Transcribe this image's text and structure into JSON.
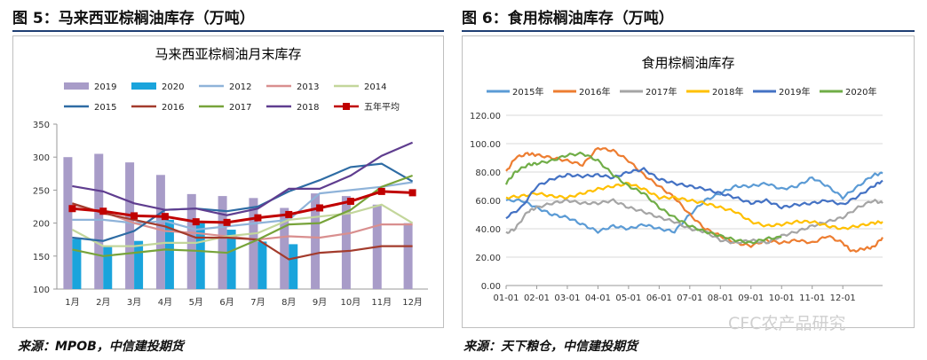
{
  "header": {
    "left_title": "图 5：马来西亚棕榈油库存（万吨）",
    "right_title": "图 6：食用棕榈油库存（万吨）"
  },
  "footer": {
    "left_source": "来源：MPOB，中信建投期货",
    "right_source": "来源：天下粮仓，中信建投期货",
    "watermark": "CFC农产品研究"
  },
  "chart_data": [
    {
      "type": "bar",
      "title": "马来西亚棕榈油月末库存",
      "categories": [
        "1月",
        "2月",
        "3月",
        "4月",
        "5月",
        "6月",
        "7月",
        "8月",
        "9月",
        "10月",
        "11月",
        "12月"
      ],
      "ylim": [
        100,
        350
      ],
      "yticks": [
        100,
        150,
        200,
        250,
        300,
        350
      ],
      "grid": false,
      "legend_position": "top",
      "series": [
        {
          "name": "2019",
          "kind": "bar",
          "color": "#a89cc8",
          "values": [
            300,
            305,
            292,
            273,
            244,
            241,
            238,
            223,
            245,
            241,
            228,
            200
          ]
        },
        {
          "name": "2020",
          "kind": "bar",
          "color": "#1aa4dc",
          "values": [
            176,
            165,
            173,
            205,
            200,
            190,
            172,
            168,
            null,
            null,
            null,
            null
          ]
        },
        {
          "name": "2012",
          "kind": "line",
          "color": "#8fb3d9",
          "values": [
            205,
            205,
            200,
            203,
            190,
            195,
            200,
            205,
            245,
            250,
            255,
            262
          ]
        },
        {
          "name": "2013",
          "kind": "line",
          "color": "#d98f8f",
          "values": [
            228,
            217,
            200,
            188,
            185,
            180,
            175,
            180,
            178,
            185,
            198,
            198
          ]
        },
        {
          "name": "2014",
          "kind": "line",
          "color": "#c3d69b",
          "values": [
            190,
            165,
            165,
            170,
            170,
            180,
            185,
            205,
            210,
            215,
            228,
            200
          ]
        },
        {
          "name": "2015",
          "kind": "line",
          "color": "#2e6ca4",
          "values": [
            178,
            173,
            188,
            220,
            222,
            218,
            225,
            248,
            265,
            285,
            290,
            263
          ]
        },
        {
          "name": "2016",
          "kind": "line",
          "color": "#a33b2c",
          "values": [
            230,
            215,
            205,
            195,
            178,
            178,
            175,
            145,
            155,
            158,
            165,
            165
          ]
        },
        {
          "name": "2017",
          "kind": "line",
          "color": "#77a33a",
          "values": [
            160,
            150,
            155,
            160,
            158,
            155,
            175,
            198,
            200,
            220,
            255,
            272
          ]
        },
        {
          "name": "2018",
          "kind": "line",
          "color": "#5f3d8f",
          "values": [
            256,
            248,
            230,
            220,
            222,
            212,
            222,
            252,
            252,
            272,
            302,
            322
          ]
        },
        {
          "name": "五年平均",
          "kind": "line-marker",
          "color": "#c00000",
          "values": [
            222,
            218,
            211,
            210,
            202,
            201,
            208,
            213,
            223,
            233,
            248,
            246
          ]
        }
      ]
    },
    {
      "type": "line",
      "title": "食用棕榈油库存",
      "x_tick_labels": [
        "01-01",
        "02-01",
        "03-01",
        "04-01",
        "05-01",
        "06-01",
        "07-01",
        "08-01",
        "09-01",
        "10-01",
        "11-01",
        "12-01"
      ],
      "ylim": [
        0,
        120
      ],
      "yticks": [
        "0.00",
        "20.00",
        "40.00",
        "60.00",
        "80.00",
        "100.00",
        "120.00"
      ],
      "grid": true,
      "legend_position": "top",
      "series": [
        {
          "name": "2015年",
          "color": "#5b9bd5",
          "points": [
            [
              0,
              60
            ],
            [
              0.5,
              60
            ],
            [
              1,
              55
            ],
            [
              1.5,
              50
            ],
            [
              2,
              48
            ],
            [
              2.5,
              43
            ],
            [
              3,
              38
            ],
            [
              3.5,
              42
            ],
            [
              4,
              40
            ],
            [
              4.5,
              43
            ],
            [
              5,
              40
            ],
            [
              5.5,
              38
            ],
            [
              6,
              50
            ],
            [
              6.5,
              60
            ],
            [
              7,
              65
            ],
            [
              7.5,
              70
            ],
            [
              8,
              70
            ],
            [
              8.5,
              72
            ],
            [
              9,
              68
            ],
            [
              9.5,
              70
            ],
            [
              10,
              76
            ],
            [
              10.5,
              70
            ],
            [
              11,
              62
            ],
            [
              11.5,
              70
            ],
            [
              12,
              78
            ],
            [
              12.3,
              79
            ]
          ]
        },
        {
          "name": "2016年",
          "color": "#ed7d31",
          "points": [
            [
              0,
              80
            ],
            [
              0.3,
              90
            ],
            [
              0.7,
              93
            ],
            [
              1,
              92
            ],
            [
              1.5,
              90
            ],
            [
              2,
              88
            ],
            [
              2.5,
              85
            ],
            [
              3,
              97
            ],
            [
              3.5,
              95
            ],
            [
              4,
              88
            ],
            [
              4.5,
              78
            ],
            [
              5,
              70
            ],
            [
              5.5,
              62
            ],
            [
              6,
              50
            ],
            [
              6.5,
              40
            ],
            [
              7,
              35
            ],
            [
              7.5,
              30
            ],
            [
              8,
              28
            ],
            [
              8.5,
              32
            ],
            [
              9,
              30
            ],
            [
              9.5,
              32
            ],
            [
              10,
              30
            ],
            [
              10.5,
              35
            ],
            [
              11,
              30
            ],
            [
              11.3,
              24
            ],
            [
              11.7,
              26
            ],
            [
              12,
              27
            ],
            [
              12.3,
              34
            ]
          ]
        },
        {
          "name": "2017年",
          "color": "#a5a5a5",
          "points": [
            [
              0,
              37
            ],
            [
              0.3,
              40
            ],
            [
              0.7,
              52
            ],
            [
              1,
              55
            ],
            [
              1.5,
              58
            ],
            [
              2,
              60
            ],
            [
              2.5,
              58
            ],
            [
              3,
              58
            ],
            [
              3.5,
              60
            ],
            [
              4,
              55
            ],
            [
              4.5,
              52
            ],
            [
              5,
              48
            ],
            [
              5.5,
              45
            ],
            [
              6,
              40
            ],
            [
              6.5,
              38
            ],
            [
              7,
              32
            ],
            [
              7.5,
              30
            ],
            [
              8,
              32
            ],
            [
              8.5,
              30
            ],
            [
              9,
              35
            ],
            [
              9.5,
              38
            ],
            [
              10,
              42
            ],
            [
              10.5,
              45
            ],
            [
              11,
              48
            ],
            [
              11.5,
              55
            ],
            [
              12,
              60
            ],
            [
              12.3,
              58
            ]
          ]
        },
        {
          "name": "2018年",
          "color": "#ffc000",
          "points": [
            [
              0,
              62
            ],
            [
              0.5,
              63
            ],
            [
              1,
              65
            ],
            [
              1.5,
              63
            ],
            [
              2,
              62
            ],
            [
              2.5,
              65
            ],
            [
              3,
              68
            ],
            [
              3.5,
              70
            ],
            [
              4,
              72
            ],
            [
              4.5,
              68
            ],
            [
              5,
              62
            ],
            [
              5.5,
              62
            ],
            [
              6,
              60
            ],
            [
              6.5,
              58
            ],
            [
              7,
              55
            ],
            [
              7.5,
              52
            ],
            [
              8,
              45
            ],
            [
              8.5,
              42
            ],
            [
              9,
              43
            ],
            [
              9.5,
              45
            ],
            [
              10,
              45
            ],
            [
              10.5,
              42
            ],
            [
              11,
              40
            ],
            [
              11.5,
              42
            ],
            [
              12,
              44
            ],
            [
              12.3,
              45
            ]
          ]
        },
        {
          "name": "2019年",
          "color": "#4472c4",
          "points": [
            [
              0,
              48
            ],
            [
              0.5,
              55
            ],
            [
              1,
              70
            ],
            [
              1.5,
              75
            ],
            [
              2,
              78
            ],
            [
              2.5,
              77
            ],
            [
              3,
              78
            ],
            [
              3.5,
              76
            ],
            [
              4,
              80
            ],
            [
              4.5,
              82
            ],
            [
              5,
              75
            ],
            [
              5.5,
              72
            ],
            [
              6,
              70
            ],
            [
              6.5,
              68
            ],
            [
              7,
              65
            ],
            [
              7.5,
              62
            ],
            [
              8,
              58
            ],
            [
              8.5,
              60
            ],
            [
              9,
              55
            ],
            [
              9.5,
              57
            ],
            [
              10,
              58
            ],
            [
              10.5,
              60
            ],
            [
              11,
              57
            ],
            [
              11.5,
              63
            ],
            [
              12,
              70
            ],
            [
              12.3,
              74
            ]
          ]
        },
        {
          "name": "2020年",
          "color": "#70ad47",
          "points": [
            [
              0,
              72
            ],
            [
              0.3,
              80
            ],
            [
              0.7,
              85
            ],
            [
              1,
              86
            ],
            [
              1.5,
              88
            ],
            [
              2,
              92
            ],
            [
              2.5,
              93
            ],
            [
              3,
              88
            ],
            [
              3.5,
              78
            ],
            [
              4,
              70
            ],
            [
              4.5,
              65
            ],
            [
              5,
              55
            ],
            [
              5.5,
              48
            ],
            [
              6,
              42
            ],
            [
              6.5,
              38
            ],
            [
              7,
              35
            ],
            [
              7.5,
              32
            ],
            [
              8,
              30
            ],
            [
              8.5,
              33
            ],
            [
              9,
              34
            ]
          ]
        }
      ]
    }
  ]
}
